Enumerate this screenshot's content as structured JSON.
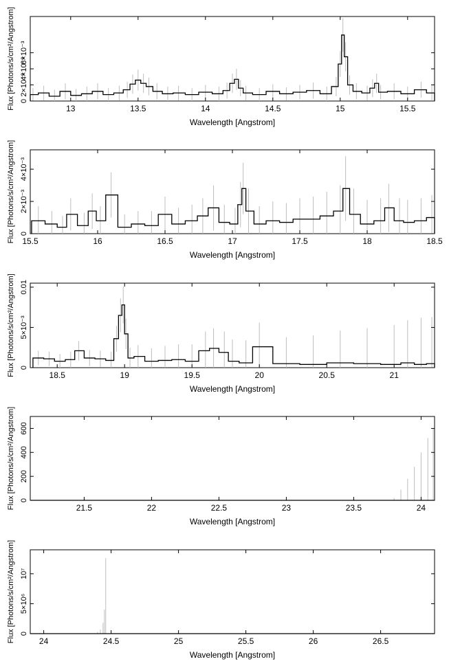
{
  "chart_data": [
    {
      "type": "line",
      "xlabel": "Wavelength [Angstrom]",
      "ylabel": "Flux [Photons/s/cm²/Angstrom]",
      "xlim": [
        12.7,
        15.7
      ],
      "ylim": [
        0,
        0.0105
      ],
      "xticks": [
        13,
        13.5,
        14,
        14.5,
        15,
        15.5
      ],
      "xtick_labels": [
        "13",
        "13.5",
        "14",
        "14.5",
        "15",
        "15.5"
      ],
      "yticks": [
        0,
        0.002,
        0.004,
        0.006
      ],
      "ytick_labels": [
        "0",
        "2×10⁻³",
        "4×10⁻³",
        "6×10⁻³"
      ],
      "series": [
        {
          "x": [
            12.72,
            12.8,
            12.88,
            12.96,
            13.04,
            13.12,
            13.2,
            13.28,
            13.36,
            13.42,
            13.46,
            13.5,
            13.54,
            13.58,
            13.64,
            13.72,
            13.8,
            13.9,
            14.0,
            14.1,
            14.16,
            14.2,
            14.23,
            14.26,
            14.3,
            14.4,
            14.5,
            14.6,
            14.7,
            14.8,
            14.9,
            14.97,
            15.0,
            15.02,
            15.04,
            15.07,
            15.12,
            15.2,
            15.24,
            15.27,
            15.3,
            15.4,
            15.5,
            15.6,
            15.68
          ],
          "y": [
            0.0008,
            0.001,
            0.0006,
            0.0012,
            0.0007,
            0.0009,
            0.0012,
            0.0008,
            0.001,
            0.0014,
            0.0021,
            0.0026,
            0.0022,
            0.0018,
            0.0012,
            0.0009,
            0.001,
            0.0008,
            0.0011,
            0.0009,
            0.0013,
            0.0022,
            0.0027,
            0.0016,
            0.001,
            0.0008,
            0.0012,
            0.0009,
            0.0011,
            0.0013,
            0.0009,
            0.0018,
            0.0046,
            0.0082,
            0.0055,
            0.002,
            0.0012,
            0.001,
            0.0016,
            0.0022,
            0.0011,
            0.0012,
            0.0009,
            0.0014,
            0.001
          ],
          "err": [
            0.0008,
            0.0009,
            0.0008,
            0.001,
            0.0008,
            0.0009,
            0.001,
            0.0008,
            0.0009,
            0.001,
            0.0012,
            0.0013,
            0.0012,
            0.0011,
            0.001,
            0.0009,
            0.0009,
            0.0008,
            0.0009,
            0.0009,
            0.001,
            0.0012,
            0.0013,
            0.001,
            0.0009,
            0.0008,
            0.0009,
            0.0008,
            0.0009,
            0.001,
            0.0009,
            0.0012,
            0.0016,
            0.0021,
            0.0018,
            0.0012,
            0.001,
            0.0009,
            0.0011,
            0.0012,
            0.0009,
            0.001,
            0.0009,
            0.001,
            0.0009
          ]
        }
      ]
    },
    {
      "type": "line",
      "xlabel": "Wavelength [Angstrom]",
      "ylabel": "Flux [Photons/s/cm²/Angstrom]",
      "xlim": [
        15.5,
        18.5
      ],
      "ylim": [
        0,
        0.0052
      ],
      "xticks": [
        15.5,
        16,
        16.5,
        17,
        17.5,
        18,
        18.5
      ],
      "xtick_labels": [
        "15.5",
        "16",
        "16.5",
        "17",
        "17.5",
        "18",
        "18.5"
      ],
      "yticks": [
        0,
        0.002,
        0.004
      ],
      "ytick_labels": [
        "0",
        "2×10⁻³",
        "4×10⁻³"
      ],
      "series": [
        {
          "x": [
            15.56,
            15.66,
            15.74,
            15.8,
            15.9,
            15.96,
            16.02,
            16.1,
            16.2,
            16.3,
            16.4,
            16.5,
            16.6,
            16.7,
            16.78,
            16.86,
            16.94,
            17.02,
            17.06,
            17.08,
            17.12,
            17.2,
            17.3,
            17.4,
            17.5,
            17.6,
            17.7,
            17.8,
            17.84,
            17.9,
            18.0,
            18.1,
            18.16,
            18.24,
            18.3,
            18.4,
            18.48
          ],
          "y": [
            0.0008,
            0.0006,
            0.0004,
            0.0012,
            0.0005,
            0.0014,
            0.0008,
            0.0024,
            0.0004,
            0.0006,
            0.0005,
            0.0012,
            0.0006,
            0.0008,
            0.0011,
            0.0016,
            0.0007,
            0.0006,
            0.0018,
            0.0028,
            0.0014,
            0.0006,
            0.0008,
            0.0007,
            0.0009,
            0.0009,
            0.0011,
            0.0014,
            0.0028,
            0.0012,
            0.0006,
            0.0008,
            0.0016,
            0.0008,
            0.0007,
            0.0008,
            0.001
          ],
          "err": [
            0.0009,
            0.0008,
            0.0007,
            0.001,
            0.0008,
            0.0011,
            0.0009,
            0.0014,
            0.0008,
            0.0008,
            0.0009,
            0.0011,
            0.001,
            0.001,
            0.0011,
            0.0014,
            0.0011,
            0.001,
            0.0014,
            0.0016,
            0.0014,
            0.0011,
            0.0012,
            0.0012,
            0.0013,
            0.0014,
            0.0015,
            0.0016,
            0.002,
            0.0016,
            0.0015,
            0.0014,
            0.0015,
            0.0014,
            0.0014,
            0.0014,
            0.0014
          ]
        }
      ]
    },
    {
      "type": "line",
      "xlabel": "Wavelength [Angstrom]",
      "ylabel": "Flux [Photons/s/cm²/Angstrom]",
      "xlim": [
        18.3,
        21.3
      ],
      "ylim": [
        0,
        0.0105
      ],
      "xticks": [
        18.5,
        19,
        19.5,
        20,
        20.5,
        21
      ],
      "xtick_labels": [
        "18.5",
        "19",
        "19.5",
        "20",
        "20.5",
        "21"
      ],
      "yticks": [
        0,
        0.005,
        0.01
      ],
      "ytick_labels": [
        "0",
        "5×10⁻³",
        "0.01"
      ],
      "series": [
        {
          "x": [
            18.36,
            18.44,
            18.52,
            18.6,
            18.66,
            18.74,
            18.82,
            18.9,
            18.94,
            18.97,
            18.99,
            19.01,
            19.04,
            19.1,
            19.2,
            19.3,
            19.4,
            19.5,
            19.6,
            19.66,
            19.74,
            19.8,
            19.9,
            20.0,
            20.2,
            20.4,
            20.6,
            20.8,
            21.0,
            21.1,
            21.2,
            21.28
          ],
          "y": [
            0.0012,
            0.0011,
            0.0008,
            0.001,
            0.0021,
            0.0012,
            0.0011,
            0.0009,
            0.0036,
            0.0065,
            0.0078,
            0.0042,
            0.0012,
            0.0014,
            0.0008,
            0.0009,
            0.001,
            0.0008,
            0.0021,
            0.0024,
            0.0019,
            0.0008,
            0.0006,
            0.0026,
            0.0005,
            0.0004,
            0.0006,
            0.0005,
            0.0004,
            0.0006,
            0.0004,
            0.0005
          ],
          "err": [
            0.0009,
            0.0009,
            0.0009,
            0.001,
            0.0012,
            0.001,
            0.001,
            0.0011,
            0.0016,
            0.0021,
            0.0023,
            0.0019,
            0.0013,
            0.0014,
            0.0016,
            0.0018,
            0.0019,
            0.0021,
            0.0024,
            0.0025,
            0.0026,
            0.0027,
            0.0028,
            0.003,
            0.0033,
            0.0036,
            0.004,
            0.0044,
            0.0049,
            0.0053,
            0.0058,
            0.0058
          ]
        }
      ]
    },
    {
      "type": "line",
      "xlabel": "Wavelength [Angstrom]",
      "ylabel": "Flux [Photons/s/cm²/Angstrom]",
      "xlim": [
        21.1,
        24.1
      ],
      "ylim": [
        0,
        700
      ],
      "xticks": [
        21.5,
        22,
        22.5,
        23,
        23.5,
        24
      ],
      "xtick_labels": [
        "21.5",
        "22",
        "22.5",
        "23",
        "23.5",
        "24"
      ],
      "yticks": [
        0,
        200,
        400,
        600
      ],
      "ytick_labels": [
        "0",
        "200",
        "400",
        "600"
      ],
      "series": [
        {
          "x": [
            21.2,
            21.6,
            22.0,
            22.4,
            22.8,
            23.2,
            23.6,
            23.8,
            23.85,
            23.9,
            23.95,
            24.0,
            24.05,
            24.09
          ],
          "y": [
            0,
            0,
            0,
            0,
            0,
            0,
            0,
            0,
            0,
            0,
            0,
            0,
            0,
            0
          ],
          "err": [
            0.004,
            0.005,
            0.006,
            0.008,
            0.01,
            0.02,
            0.4,
            20,
            90,
            180,
            280,
            400,
            520,
            600
          ]
        }
      ]
    },
    {
      "type": "line",
      "xlabel": "Wavelength [Angstrom]",
      "ylabel": "Flux [Photons/s/cm²/Angstrom]",
      "xlim": [
        23.9,
        26.9
      ],
      "ylim": [
        0,
        14000000
      ],
      "xticks": [
        24,
        24.5,
        25,
        25.5,
        26,
        26.5
      ],
      "xtick_labels": [
        "24",
        "24.5",
        "25",
        "25.5",
        "26",
        "26.5"
      ],
      "yticks": [
        0,
        5000000,
        10000000
      ],
      "ytick_labels": [
        "0",
        "5×10⁶",
        "10⁷"
      ],
      "series": [
        {
          "x": [
            24.0,
            24.2,
            24.4,
            24.42,
            24.44,
            24.45,
            24.46,
            24.47,
            24.6,
            25.0,
            25.5,
            26.0,
            26.5,
            26.85
          ],
          "y": [
            0,
            0,
            0,
            0,
            0,
            0,
            0,
            0,
            0,
            0,
            0,
            0,
            0,
            0
          ],
          "err": [
            0,
            0,
            300000,
            700000,
            1800000,
            4000000,
            12600000,
            0,
            0,
            0,
            0,
            0,
            0,
            0
          ]
        }
      ]
    }
  ]
}
